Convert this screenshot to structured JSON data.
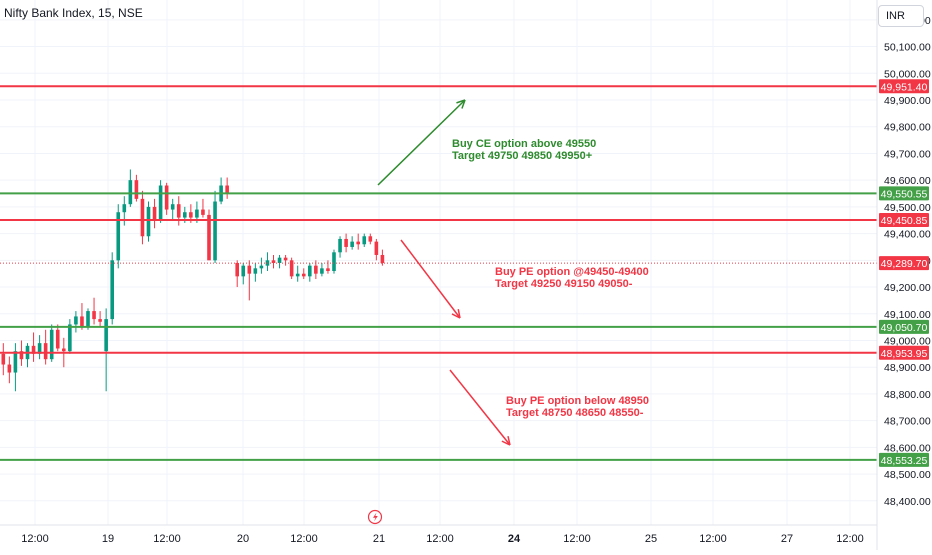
{
  "header": {
    "symbol_title": "Nifty Bank Index, 15, NSE",
    "currency": "INR"
  },
  "chart_data": {
    "type": "candlestick",
    "title": "Nifty Bank Index, 15, NSE",
    "ylim": [
      48340,
      50200
    ],
    "price_axis_ticks": [
      "48,400.00",
      "48,500.00",
      "48,600.00",
      "48,700.00",
      "48,800.00",
      "48,900.00",
      "49,000.00",
      "49,100.00",
      "49,200.00",
      "49,300.00",
      "49,400.00",
      "49,500.00",
      "49,600.00",
      "49,700.00",
      "49,800.00",
      "49,900.00",
      "50,000.00",
      "50,100.00",
      "50,200.00"
    ],
    "time_axis_labels": [
      {
        "label": "12:00",
        "x": 1.35
      },
      {
        "label": "19",
        "x": 3
      },
      {
        "label": "12:00",
        "x": 4.35
      },
      {
        "label": "20",
        "x": 6
      },
      {
        "label": "12:00",
        "x": 7.35
      },
      {
        "label": "21",
        "x": 9
      },
      {
        "label": "12:00",
        "x": 10.35
      },
      {
        "label": "24",
        "x": 12,
        "bold": true
      },
      {
        "label": "12:00",
        "x": 13.35
      },
      {
        "label": "25",
        "x": 15
      },
      {
        "label": "12:00",
        "x": 16.35
      },
      {
        "label": "27",
        "x": 18
      },
      {
        "label": "12:00",
        "x": 19.35
      }
    ],
    "horizontal_levels": [
      {
        "price": 49951.4,
        "label": "49,951.40",
        "color": "#f23645"
      },
      {
        "price": 49550.55,
        "label": "49,550.55",
        "color": "#43a047"
      },
      {
        "price": 49450.85,
        "label": "49,450.85",
        "color": "#f23645"
      },
      {
        "price": 49050.7,
        "label": "49,050.70",
        "color": "#43a047"
      },
      {
        "price": 48953.95,
        "label": "48,953.95",
        "color": "#f23645"
      },
      {
        "price": 48553.25,
        "label": "48,553.25",
        "color": "#43a047"
      }
    ],
    "last_price": {
      "price": 49289.7,
      "label": "49,289.70",
      "color": "#f23645"
    },
    "annotations": [
      {
        "lines": [
          "Buy CE option above 49550",
          "Target 49750 49850 49950+"
        ],
        "color": "#2e8b2e",
        "x": 10.3,
        "y": 49790
      },
      {
        "lines": [
          "Buy PE option @49450-49400",
          "Target 49250 49150 49050-"
        ],
        "color": "#f23645",
        "x": 10.96,
        "y": 49255
      },
      {
        "lines": [
          "Buy PE option below 48950",
          "Target 48750 48650 48550-"
        ],
        "color": "#f23645",
        "x": 11.21,
        "y": 48720
      }
    ],
    "arrows": [
      {
        "from": [
          8.35,
          49590
        ],
        "to": [
          10.3,
          49915
        ],
        "color": "#2e8b2e"
      },
      {
        "from": [
          8.85,
          49445
        ],
        "to": [
          10.2,
          49095
        ],
        "color": "#f23645"
      },
      {
        "from": [
          9.93,
          48965
        ],
        "to": [
          11.3,
          48620
        ],
        "color": "#f23645"
      }
    ],
    "candles": [
      {
        "o": 48950,
        "h": 48990,
        "l": 48870,
        "c": 48910
      },
      {
        "o": 48910,
        "h": 48940,
        "l": 48840,
        "c": 48880
      },
      {
        "o": 48880,
        "h": 48990,
        "l": 48810,
        "c": 48960
      },
      {
        "o": 48960,
        "h": 49000,
        "l": 48905,
        "c": 48930
      },
      {
        "o": 48930,
        "h": 48990,
        "l": 48900,
        "c": 48980
      },
      {
        "o": 48980,
        "h": 49030,
        "l": 48920,
        "c": 48950
      },
      {
        "o": 48950,
        "h": 49020,
        "l": 48930,
        "c": 48990
      },
      {
        "o": 48990,
        "h": 49040,
        "l": 48910,
        "c": 48930
      },
      {
        "o": 48930,
        "h": 49060,
        "l": 48920,
        "c": 49040
      },
      {
        "o": 49040,
        "h": 49060,
        "l": 48960,
        "c": 48970
      },
      {
        "o": 48970,
        "h": 49010,
        "l": 48900,
        "c": 48960
      },
      {
        "o": 48960,
        "h": 49080,
        "l": 48950,
        "c": 49060
      },
      {
        "o": 49060,
        "h": 49110,
        "l": 49030,
        "c": 49090
      },
      {
        "o": 49090,
        "h": 49140,
        "l": 49040,
        "c": 49050
      },
      {
        "o": 49050,
        "h": 49120,
        "l": 49040,
        "c": 49110
      },
      {
        "o": 49110,
        "h": 49160,
        "l": 49060,
        "c": 49080
      },
      {
        "o": 49080,
        "h": 49110,
        "l": 49050,
        "c": 49070
      },
      {
        "o": 48960,
        "h": 49120,
        "l": 48810,
        "c": 49080
      },
      {
        "o": 49080,
        "h": 49330,
        "l": 49060,
        "c": 49300
      },
      {
        "o": 49300,
        "h": 49510,
        "l": 49270,
        "c": 49480
      },
      {
        "o": 49480,
        "h": 49540,
        "l": 49430,
        "c": 49510
      },
      {
        "o": 49510,
        "h": 49640,
        "l": 49500,
        "c": 49600
      },
      {
        "o": 49600,
        "h": 49620,
        "l": 49520,
        "c": 49530
      },
      {
        "o": 49530,
        "h": 49560,
        "l": 49360,
        "c": 49390
      },
      {
        "o": 49390,
        "h": 49520,
        "l": 49370,
        "c": 49500
      },
      {
        "o": 49500,
        "h": 49530,
        "l": 49420,
        "c": 49450
      },
      {
        "o": 49450,
        "h": 49600,
        "l": 49440,
        "c": 49580
      },
      {
        "o": 49580,
        "h": 49590,
        "l": 49470,
        "c": 49490
      },
      {
        "o": 49490,
        "h": 49530,
        "l": 49450,
        "c": 49510
      },
      {
        "o": 49510,
        "h": 49540,
        "l": 49430,
        "c": 49460
      },
      {
        "o": 49460,
        "h": 49500,
        "l": 49440,
        "c": 49480
      },
      {
        "o": 49480,
        "h": 49510,
        "l": 49440,
        "c": 49460
      },
      {
        "o": 49460,
        "h": 49520,
        "l": 49440,
        "c": 49490
      },
      {
        "o": 49490,
        "h": 49530,
        "l": 49460,
        "c": 49470
      },
      {
        "o": 49470,
        "h": 49490,
        "l": 49310,
        "c": 49300
      },
      {
        "o": 49300,
        "h": 49560,
        "l": 49290,
        "c": 49520
      },
      {
        "o": 49520,
        "h": 49610,
        "l": 49510,
        "c": 49580
      },
      {
        "o": 49580,
        "h": 49610,
        "l": 49530,
        "c": 49550
      },
      {
        "o": 49290,
        "h": 49300,
        "l": 49200,
        "c": 49240
      },
      {
        "o": 49240,
        "h": 49290,
        "l": 49210,
        "c": 49280
      },
      {
        "o": 49280,
        "h": 49300,
        "l": 49150,
        "c": 49250
      },
      {
        "o": 49250,
        "h": 49290,
        "l": 49220,
        "c": 49270
      },
      {
        "o": 49270,
        "h": 49310,
        "l": 49250,
        "c": 49280
      },
      {
        "o": 49280,
        "h": 49330,
        "l": 49260,
        "c": 49300
      },
      {
        "o": 49300,
        "h": 49320,
        "l": 49270,
        "c": 49290
      },
      {
        "o": 49290,
        "h": 49320,
        "l": 49270,
        "c": 49310
      },
      {
        "o": 49310,
        "h": 49320,
        "l": 49280,
        "c": 49300
      },
      {
        "o": 49300,
        "h": 49310,
        "l": 49230,
        "c": 49240
      },
      {
        "o": 49240,
        "h": 49280,
        "l": 49220,
        "c": 49250
      },
      {
        "o": 49250,
        "h": 49270,
        "l": 49230,
        "c": 49240
      },
      {
        "o": 49240,
        "h": 49290,
        "l": 49220,
        "c": 49280
      },
      {
        "o": 49280,
        "h": 49300,
        "l": 49230,
        "c": 49250
      },
      {
        "o": 49250,
        "h": 49290,
        "l": 49240,
        "c": 49270
      },
      {
        "o": 49270,
        "h": 49300,
        "l": 49250,
        "c": 49260
      },
      {
        "o": 49260,
        "h": 49340,
        "l": 49250,
        "c": 49330
      },
      {
        "o": 49330,
        "h": 49390,
        "l": 49310,
        "c": 49380
      },
      {
        "o": 49380,
        "h": 49400,
        "l": 49330,
        "c": 49350
      },
      {
        "o": 49350,
        "h": 49390,
        "l": 49340,
        "c": 49370
      },
      {
        "o": 49370,
        "h": 49400,
        "l": 49340,
        "c": 49360
      },
      {
        "o": 49360,
        "h": 49400,
        "l": 49350,
        "c": 49390
      },
      {
        "o": 49390,
        "h": 49400,
        "l": 49360,
        "c": 49370
      },
      {
        "o": 49370,
        "h": 49380,
        "l": 49300,
        "c": 49320
      },
      {
        "o": 49320,
        "h": 49340,
        "l": 49280,
        "c": 49290
      }
    ]
  }
}
